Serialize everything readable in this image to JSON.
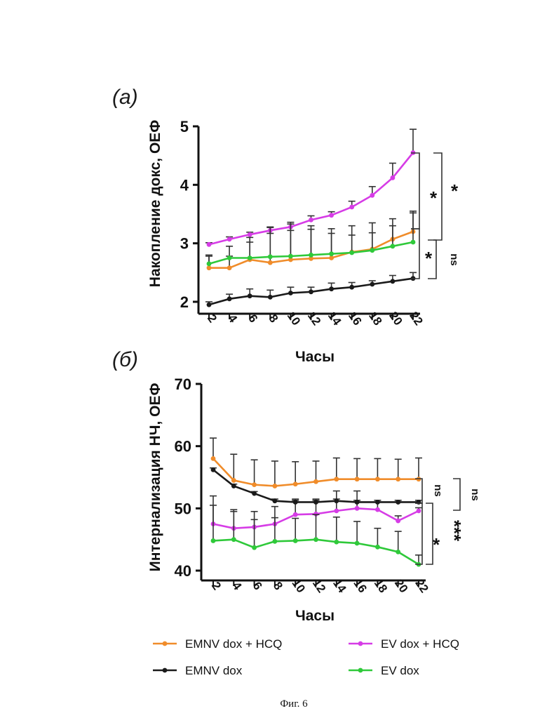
{
  "caption": "Фиг. 6",
  "colors": {
    "EMNV dox + HCQ": "#f08c2a",
    "EV dox + HCQ": "#d63ce6",
    "EMNV dox": "#1a1a1a",
    "EV dox": "#2fc93a"
  },
  "legend": {
    "entries": [
      "EMNV dox + HCQ",
      "EV dox + HCQ",
      "EMNV dox",
      "EV dox"
    ],
    "placement": "bottom"
  },
  "chart_data": [
    {
      "panel": "(а)",
      "type": "line",
      "ylabel": "Накопление докс, ОЕФ",
      "xlabel": "Часы",
      "ylim": [
        2,
        5
      ],
      "yticks": [
        2,
        3,
        4,
        5
      ],
      "x": [
        2,
        4,
        6,
        8,
        10,
        12,
        14,
        16,
        18,
        20,
        22
      ],
      "series": [
        {
          "name": "EMNV dox + HCQ",
          "values": [
            2.58,
            2.58,
            2.72,
            2.67,
            2.72,
            2.74,
            2.75,
            2.85,
            2.9,
            3.07,
            3.2
          ],
          "errors": [
            0.2,
            0.2,
            0.3,
            0.5,
            0.5,
            0.5,
            0.5,
            0.45,
            0.45,
            0.35,
            0.35
          ]
        },
        {
          "name": "EV dox + HCQ",
          "values": [
            2.98,
            3.07,
            3.15,
            3.22,
            3.28,
            3.4,
            3.48,
            3.62,
            3.82,
            4.12,
            4.55
          ],
          "errors": [
            0.03,
            0.04,
            0.04,
            0.06,
            0.08,
            0.07,
            0.06,
            0.1,
            0.15,
            0.25,
            0.4
          ]
        },
        {
          "name": "EMNV dox",
          "values": [
            1.95,
            2.05,
            2.1,
            2.08,
            2.15,
            2.17,
            2.22,
            2.25,
            2.3,
            2.35,
            2.4
          ],
          "errors": [
            0.05,
            0.08,
            0.12,
            0.12,
            0.1,
            0.08,
            0.1,
            0.08,
            0.06,
            0.1,
            0.1
          ]
        },
        {
          "name": "EV dox",
          "values": [
            2.65,
            2.75,
            2.75,
            2.77,
            2.78,
            2.8,
            2.82,
            2.84,
            2.88,
            2.95,
            3.02
          ],
          "errors": [
            0.15,
            0.2,
            0.35,
            0.5,
            0.55,
            0.5,
            0.35,
            0.3,
            0.3,
            0.35,
            0.5
          ]
        }
      ],
      "annotations": [
        {
          "label": "*",
          "between": [
            "EV dox + HCQ",
            "EMNV dox + HCQ"
          ]
        },
        {
          "label": "*",
          "between": [
            "EV dox + HCQ",
            "EV dox"
          ]
        },
        {
          "label": "*",
          "between": [
            "EMNV dox + HCQ",
            "EMNV dox"
          ]
        },
        {
          "label": "ns",
          "between": [
            "EV dox",
            "EMNV dox"
          ]
        }
      ]
    },
    {
      "panel": "(б)",
      "type": "line",
      "ylabel": "Интернализация НЧ, ОЕФ",
      "xlabel": "Часы",
      "ylim": [
        40,
        70
      ],
      "yticks": [
        40,
        50,
        60,
        70
      ],
      "x": [
        2,
        4,
        6,
        8,
        10,
        12,
        14,
        16,
        18,
        20,
        22
      ],
      "series": [
        {
          "name": "EMNV dox + HCQ",
          "values": [
            58,
            54.5,
            53.8,
            53.6,
            53.9,
            54.3,
            54.7,
            54.7,
            54.7,
            54.7,
            54.7
          ],
          "errors": [
            3.3,
            4.2,
            4,
            4,
            3.6,
            3.3,
            3.4,
            3.3,
            3.3,
            3.2,
            3.4
          ]
        },
        {
          "name": "EV dox + HCQ",
          "values": [
            47.5,
            46.8,
            47,
            47.5,
            49,
            49.1,
            49.6,
            50,
            49.8,
            48,
            49.6
          ],
          "errors": [
            4.5,
            3,
            2.5,
            2.8,
            2.5,
            2.4,
            3.2,
            2.8,
            1.2,
            0.8,
            0.5
          ]
        },
        {
          "name": "EMNV dox",
          "values": [
            56.2,
            53.6,
            52.4,
            51.2,
            51,
            51,
            51.2,
            51,
            51,
            51,
            51
          ],
          "errors": [
            0.3,
            0.3,
            0.3,
            0.3,
            0.3,
            0.3,
            0.3,
            0.3,
            0.3,
            0.3,
            0.3
          ]
        },
        {
          "name": "EV dox",
          "values": [
            44.8,
            45,
            43.7,
            44.7,
            44.8,
            45,
            44.6,
            44.4,
            43.8,
            43,
            41
          ],
          "errors": [
            5.7,
            4.5,
            4.5,
            3.8,
            3.6,
            4,
            4,
            3.5,
            3,
            3.3,
            1.5
          ]
        }
      ],
      "annotations": [
        {
          "label": "ns",
          "between": [
            "EMNV dox + HCQ",
            "EMNV dox"
          ]
        },
        {
          "label": "ns",
          "between": [
            "EMNV dox + HCQ",
            "EV dox + HCQ"
          ]
        },
        {
          "label": "*",
          "between": [
            "EV dox + HCQ",
            "EV dox"
          ]
        },
        {
          "label": "***",
          "between": [
            "EMNV dox",
            "EV dox"
          ]
        }
      ]
    }
  ]
}
